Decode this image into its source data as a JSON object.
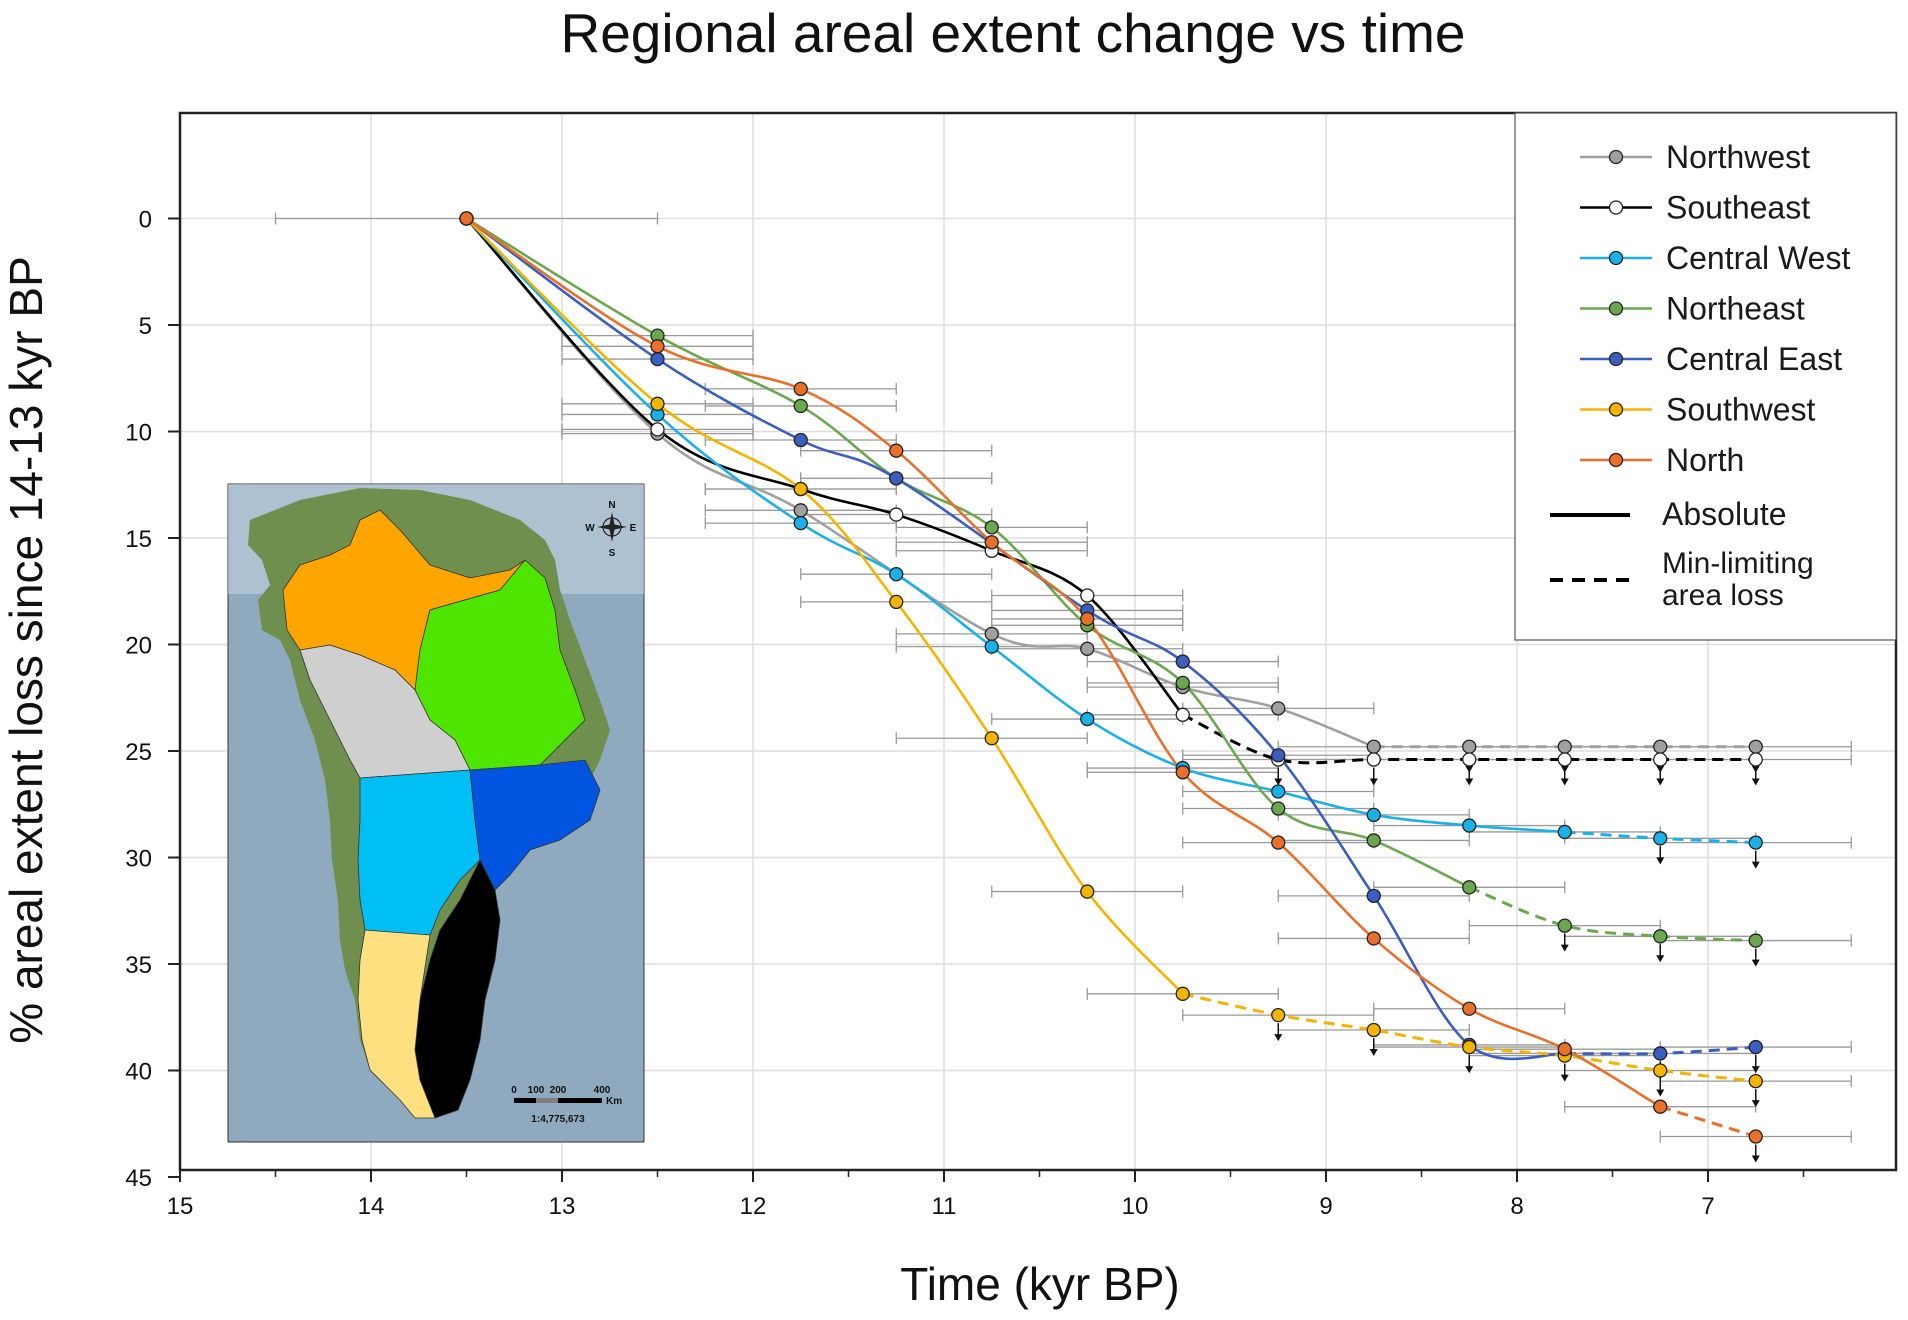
{
  "chart_data": {
    "type": "line",
    "title": "Regional areal extent change vs time",
    "xlabel": "Time (kyr BP)",
    "ylabel": "% areal extent loss since 14-13 kyr BP",
    "xlim": [
      15,
      6
    ],
    "ylim": [
      45,
      -5
    ],
    "x_axis": "reversed",
    "y_axis": "inverted",
    "grid": true,
    "legend_position": "top-right",
    "x_ticks": [
      "15",
      "14",
      "13",
      "12",
      "11",
      "10",
      "9",
      "8",
      "7"
    ],
    "y_ticks": [
      "0",
      "5",
      "10",
      "15",
      "20",
      "25",
      "30",
      "35",
      "40",
      "45"
    ],
    "x_error_half_width": 0.5,
    "start_point": {
      "x": 13.5,
      "y": 0,
      "x_err": 1.0
    },
    "series": [
      {
        "name": "Northwest",
        "color": "#a0a0a0",
        "points": [
          [
            13.5,
            0
          ],
          [
            12.5,
            10.1
          ],
          [
            11.75,
            13.7
          ],
          [
            10.75,
            19.5
          ],
          [
            10.25,
            20.2
          ],
          [
            9.75,
            22.0
          ],
          [
            9.25,
            23.0
          ],
          [
            8.75,
            24.8
          ]
        ],
        "dashed_points": [
          [
            8.75,
            24.8
          ],
          [
            8.25,
            24.8
          ],
          [
            7.75,
            24.8
          ],
          [
            7.25,
            24.8
          ],
          [
            6.75,
            24.8
          ]
        ]
      },
      {
        "name": "Southeast",
        "color": "#000000",
        "marker_fill": "#ffffff",
        "points": [
          [
            13.5,
            0
          ],
          [
            12.5,
            9.9
          ],
          [
            11.75,
            12.7
          ],
          [
            11.25,
            13.9
          ],
          [
            10.75,
            15.6
          ],
          [
            10.25,
            17.7
          ],
          [
            9.75,
            23.3
          ]
        ],
        "dashed_points": [
          [
            9.75,
            23.3
          ],
          [
            9.25,
            25.4
          ],
          [
            8.75,
            25.4
          ],
          [
            8.25,
            25.4
          ],
          [
            7.75,
            25.4
          ],
          [
            7.25,
            25.4
          ],
          [
            6.75,
            25.4
          ]
        ]
      },
      {
        "name": "Central West",
        "color": "#1ab0e8",
        "points": [
          [
            13.5,
            0
          ],
          [
            12.5,
            9.2
          ],
          [
            11.75,
            14.3
          ],
          [
            11.25,
            16.7
          ],
          [
            10.75,
            20.1
          ],
          [
            10.25,
            23.5
          ],
          [
            9.75,
            25.8
          ],
          [
            9.25,
            26.9
          ],
          [
            8.75,
            28.0
          ],
          [
            8.25,
            28.5
          ],
          [
            7.75,
            28.8
          ]
        ],
        "dashed_points": [
          [
            7.75,
            28.8
          ],
          [
            7.25,
            29.1
          ],
          [
            6.75,
            29.3
          ]
        ]
      },
      {
        "name": "Northeast",
        "color": "#6aa84f",
        "points": [
          [
            13.5,
            0
          ],
          [
            12.5,
            5.5
          ],
          [
            11.75,
            8.8
          ],
          [
            11.25,
            12.2
          ],
          [
            10.75,
            14.5
          ],
          [
            10.25,
            19.1
          ],
          [
            9.75,
            21.8
          ],
          [
            9.25,
            27.7
          ],
          [
            8.75,
            29.2
          ],
          [
            8.25,
            31.4
          ]
        ],
        "dashed_points": [
          [
            8.25,
            31.4
          ],
          [
            7.75,
            33.2
          ],
          [
            7.25,
            33.7
          ],
          [
            6.75,
            33.9
          ]
        ]
      },
      {
        "name": "Central East",
        "color": "#3a5fc0",
        "points": [
          [
            13.5,
            0
          ],
          [
            12.5,
            6.6
          ],
          [
            11.75,
            10.4
          ],
          [
            11.25,
            12.2
          ],
          [
            10.25,
            18.4
          ],
          [
            9.75,
            20.8
          ],
          [
            9.25,
            25.2
          ],
          [
            8.75,
            31.8
          ],
          [
            8.25,
            38.8
          ],
          [
            7.75,
            39.2
          ]
        ],
        "dashed_points": [
          [
            7.75,
            39.2
          ],
          [
            7.25,
            39.2
          ],
          [
            6.75,
            38.9
          ]
        ]
      },
      {
        "name": "Southwest",
        "color": "#f4b400",
        "points": [
          [
            13.5,
            0
          ],
          [
            12.5,
            8.7
          ],
          [
            11.75,
            12.7
          ],
          [
            11.25,
            18.0
          ],
          [
            10.75,
            24.4
          ],
          [
            10.25,
            31.6
          ],
          [
            9.75,
            36.4
          ]
        ],
        "dashed_points": [
          [
            9.75,
            36.4
          ],
          [
            9.25,
            37.4
          ],
          [
            8.75,
            38.1
          ],
          [
            8.25,
            38.9
          ],
          [
            7.75,
            39.3
          ],
          [
            7.25,
            40.0
          ],
          [
            6.75,
            40.5
          ]
        ]
      },
      {
        "name": "North",
        "color": "#e8702a",
        "points": [
          [
            13.5,
            0
          ],
          [
            12.5,
            6.0
          ],
          [
            11.75,
            8.0
          ],
          [
            11.25,
            10.9
          ],
          [
            10.75,
            15.2
          ],
          [
            10.25,
            18.8
          ],
          [
            9.75,
            26.0
          ],
          [
            9.25,
            29.3
          ],
          [
            8.75,
            33.8
          ],
          [
            8.25,
            37.1
          ],
          [
            7.75,
            39.0
          ],
          [
            7.25,
            41.7
          ]
        ],
        "dashed_points": [
          [
            7.25,
            41.7
          ],
          [
            6.75,
            43.1
          ]
        ]
      }
    ],
    "legend": {
      "line_styles": [
        {
          "label": "Absolute",
          "style": "solid"
        },
        {
          "label_lines": [
            "Min-limiting",
            "area loss"
          ],
          "style": "dashed"
        }
      ]
    }
  },
  "inset_map": {
    "scale_bar_labels": [
      "0",
      "100",
      "200",
      "400"
    ],
    "scale_unit": "Km",
    "scale_ratio": "1:4,775,673",
    "compass_labels": [
      "N",
      "E",
      "S",
      "W"
    ],
    "colors": {
      "ocean": "#7e9bb3",
      "land": "#6f8f4e",
      "northwest": "#ffa500",
      "northeast": "#4ee600",
      "northwest_gray": "#cfcfcf",
      "central_west": "#00bff5",
      "central_east": "#0055e0",
      "southeast": "#000000",
      "southwest": "#ffe080"
    }
  }
}
